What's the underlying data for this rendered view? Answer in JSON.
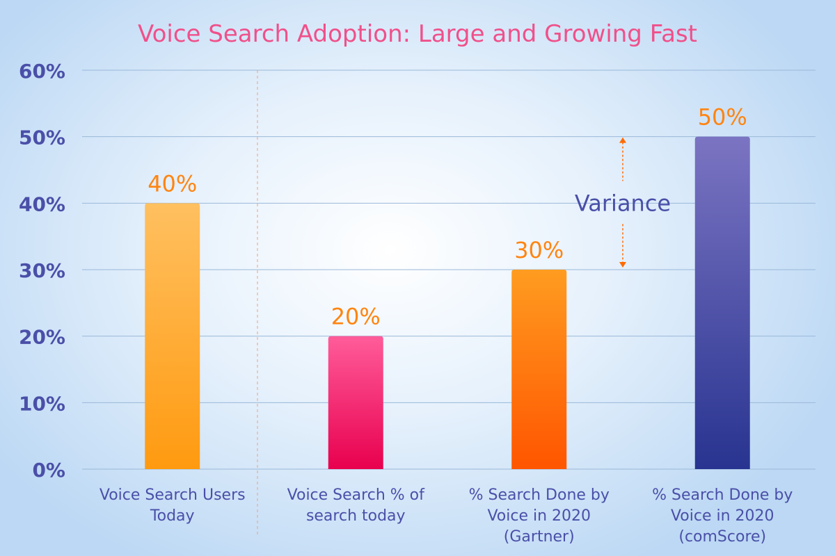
{
  "chart_data": {
    "type": "bar",
    "title": "Voice Search Adoption: Large and Growing Fast",
    "categories": [
      [
        "Voice Search Users",
        "Today"
      ],
      [
        "Voice Search  % of",
        "search today"
      ],
      [
        "% Search Done by",
        "Voice in 2020",
        "(Gartner)"
      ],
      [
        "% Search Done by",
        "Voice in 2020",
        "(comScore)"
      ]
    ],
    "values": [
      40,
      20,
      30,
      50
    ],
    "data_labels": [
      "40%",
      "20%",
      "30%",
      "50%"
    ],
    "ylim": [
      0,
      60
    ],
    "yticks": [
      0,
      10,
      20,
      30,
      40,
      50,
      60
    ],
    "ytick_labels": [
      "0%",
      "10%",
      "20%",
      "30%",
      "40%",
      "50%",
      "60%"
    ],
    "grid": true,
    "annotation": {
      "text": "Variance",
      "from": 30,
      "to": 50
    },
    "colors": {
      "title": "#f0508a",
      "axis_text": "#4a4fa8",
      "data_label": "#ff8410",
      "gridline": "#9ab8d8",
      "arrow": "#ff6a00",
      "bars": [
        [
          "#ffc060",
          "#ff9a10"
        ],
        [
          "#ff5c9a",
          "#e8004e"
        ],
        [
          "#ff9c20",
          "#ff5500"
        ],
        [
          "#7b74c2",
          "#283490"
        ]
      ]
    }
  }
}
